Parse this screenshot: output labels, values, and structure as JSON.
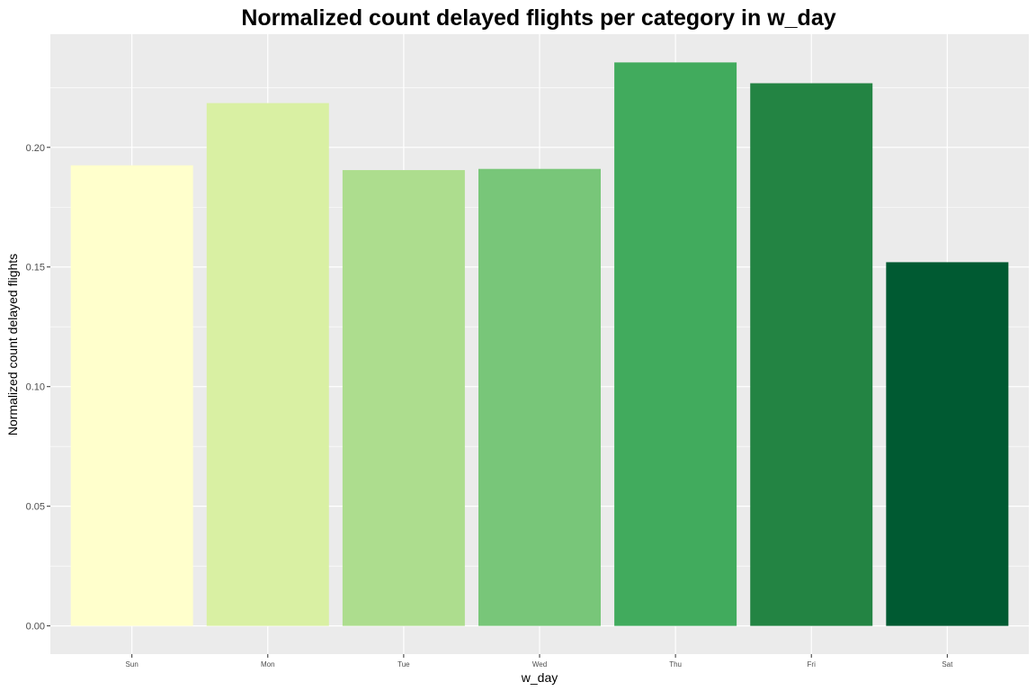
{
  "chart_data": {
    "type": "bar",
    "title": "Normalized count delayed flights per category in w_day",
    "xlabel": "w_day",
    "ylabel": "Normalized count delayed flights",
    "categories": [
      "Sun",
      "Mon",
      "Tue",
      "Wed",
      "Thu",
      "Fri",
      "Sat"
    ],
    "values": [
      0.1925,
      0.2185,
      0.1905,
      0.191,
      0.2355,
      0.2268,
      0.152
    ],
    "colors": [
      "#FFFFCC",
      "#D9F0A3",
      "#ADDD8E",
      "#78C679",
      "#41AB5D",
      "#238443",
      "#005A32"
    ],
    "yticks": [
      0.0,
      0.05,
      0.1,
      0.15,
      0.2
    ],
    "ytick_labels": [
      "0.00",
      "0.05",
      "0.10",
      "0.15",
      "0.20"
    ],
    "ylim": [
      -0.0118,
      0.2473
    ],
    "grid": true,
    "legend": "none",
    "panel_background": "#EBEBEB",
    "grid_color": "#FFFFFF"
  }
}
